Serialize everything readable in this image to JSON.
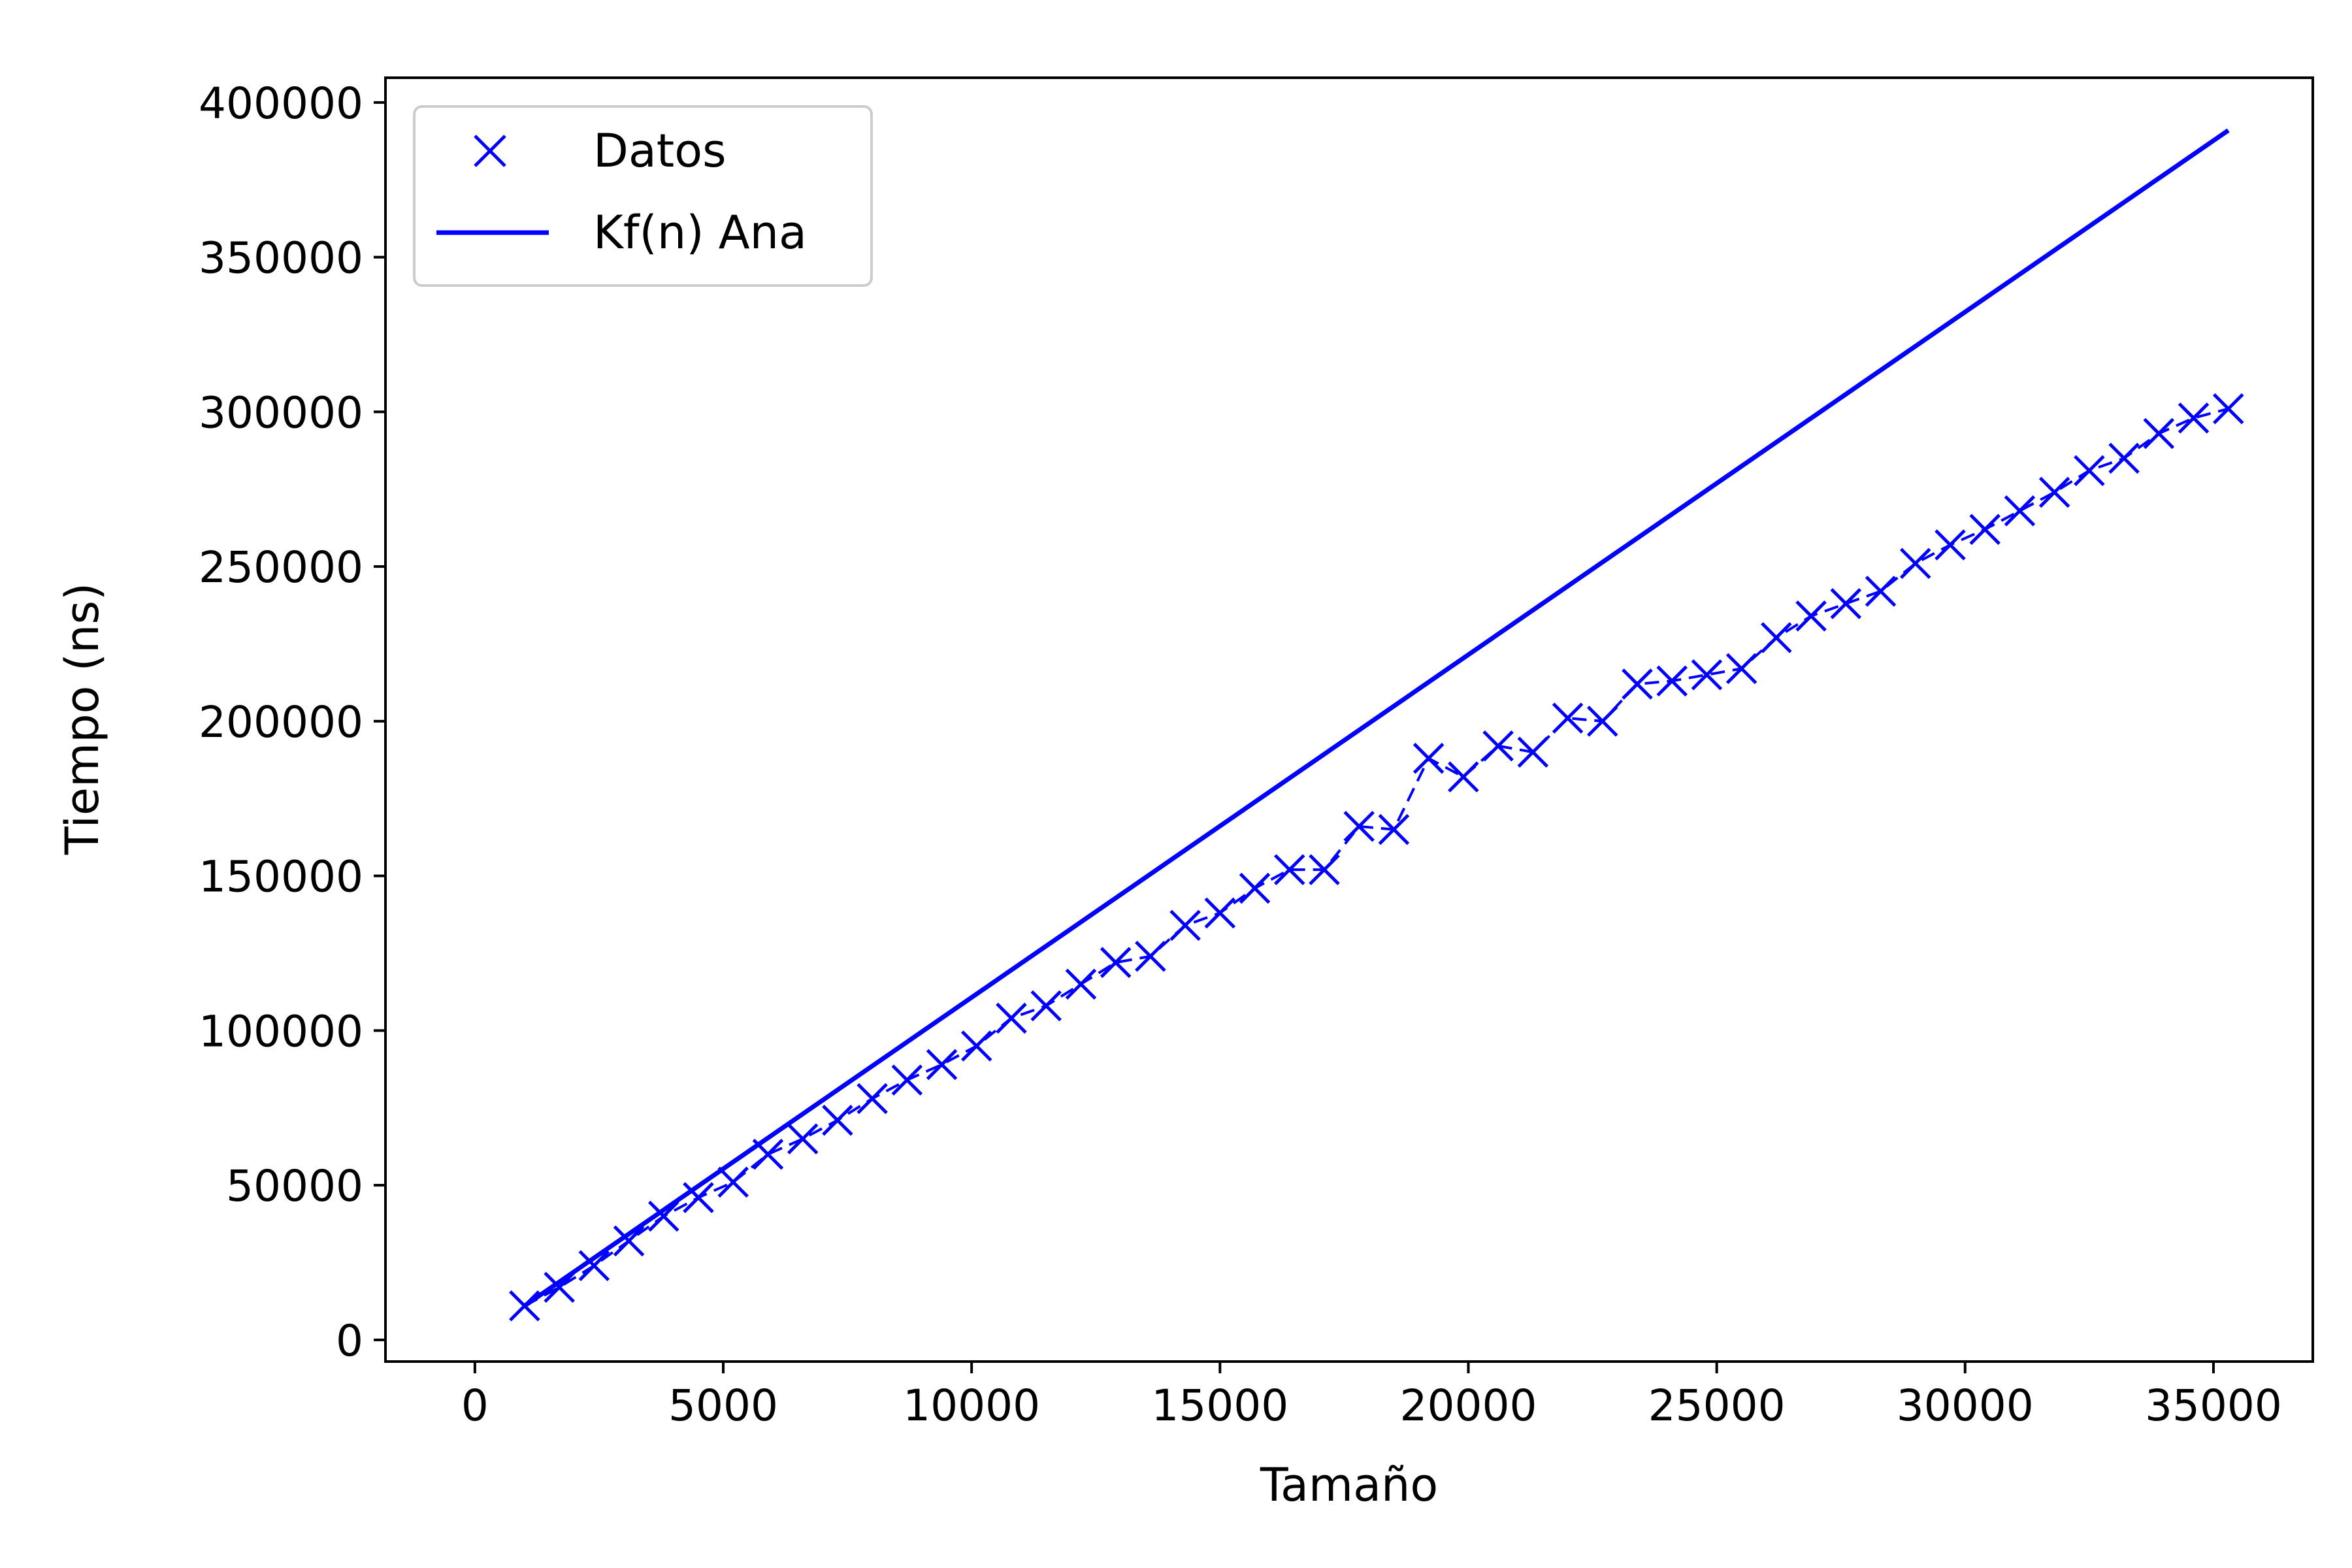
{
  "chart_data": {
    "type": "line",
    "title": "",
    "xlabel": "Tamaño",
    "ylabel": "Tiempo (ns)",
    "xlim": [
      -1800,
      37000
    ],
    "ylim": [
      -7000,
      408000
    ],
    "xticks": [
      0,
      5000,
      10000,
      15000,
      20000,
      25000,
      30000,
      35000
    ],
    "yticks": [
      0,
      50000,
      100000,
      150000,
      200000,
      250000,
      300000,
      350000,
      400000
    ],
    "xtick_labels": [
      "0",
      "5000",
      "10000",
      "15000",
      "20000",
      "25000",
      "30000",
      "35000"
    ],
    "ytick_labels": [
      "0",
      "50000",
      "100000",
      "150000",
      "200000",
      "250000",
      "300000",
      "350000",
      "400000"
    ],
    "grid": false,
    "legend_position": "upper-left",
    "color": "#0000ff",
    "series": [
      {
        "name": "Datos",
        "style": "dashed-line-with-x-markers",
        "x": [
          1000,
          1700,
          2400,
          3100,
          3800,
          4500,
          5200,
          5900,
          6600,
          7300,
          8000,
          8700,
          9400,
          10100,
          10800,
          11500,
          12200,
          12900,
          13600,
          14300,
          15000,
          15700,
          16400,
          17100,
          17800,
          18500,
          19200,
          19900,
          20600,
          21300,
          22000,
          22700,
          23400,
          24100,
          24800,
          25500,
          26200,
          26900,
          27600,
          28300,
          29000,
          29700,
          30400,
          31100,
          31800,
          32500,
          33200,
          33900,
          34600,
          35300
        ],
        "y": [
          11000,
          17000,
          24000,
          32000,
          40000,
          46000,
          51000,
          60000,
          65000,
          71000,
          78000,
          84000,
          89000,
          95000,
          104000,
          108000,
          115000,
          122000,
          124000,
          134000,
          138000,
          146000,
          152000,
          152000,
          166000,
          165000,
          188000,
          182000,
          192000,
          190000,
          201000,
          200000,
          212000,
          213000,
          215000,
          217000,
          227000,
          234000,
          238000,
          242000,
          251000,
          257000,
          262000,
          268000,
          274000,
          281000,
          285000,
          293000,
          298000,
          301000
        ]
      },
      {
        "name": "Kf(n) Ana",
        "style": "solid-line",
        "x": [
          1000,
          35300
        ],
        "y": [
          11000,
          391000
        ]
      }
    ]
  },
  "legend": {
    "items": [
      {
        "label": "Datos"
      },
      {
        "label": "Kf(n) Ana"
      }
    ]
  }
}
